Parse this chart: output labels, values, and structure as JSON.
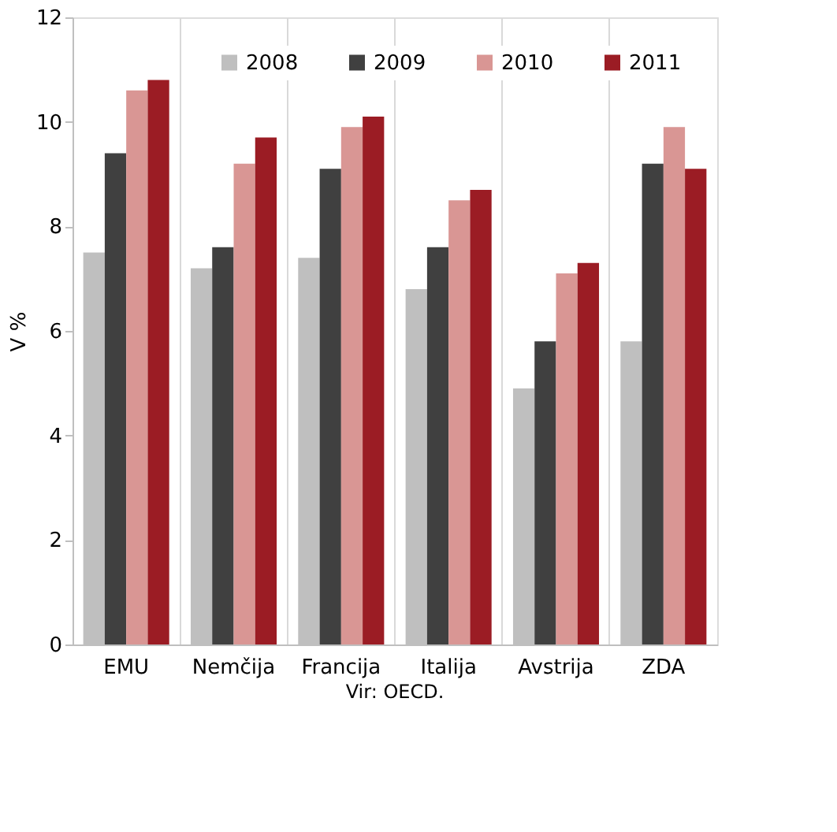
{
  "chart_data": {
    "type": "bar",
    "ylabel": "V %",
    "categories": [
      "EMU",
      "Nemčija",
      "Francija",
      "Italija",
      "Avstrija",
      "ZDA"
    ],
    "series": [
      {
        "name": "2008",
        "color": "#bfbfbf",
        "values": [
          7.5,
          7.2,
          7.4,
          6.8,
          4.9,
          5.8
        ]
      },
      {
        "name": "2009",
        "color": "#404040",
        "values": [
          9.4,
          7.6,
          9.1,
          7.6,
          5.8,
          9.2
        ]
      },
      {
        "name": "2010",
        "color": "#d99694",
        "values": [
          10.6,
          9.2,
          9.9,
          8.5,
          7.1,
          9.9
        ]
      },
      {
        "name": "2011",
        "color": "#9b1c24",
        "values": [
          10.8,
          9.7,
          10.1,
          8.7,
          7.3,
          9.1
        ]
      }
    ],
    "ylim": [
      0,
      12
    ],
    "yticks": [
      0,
      2,
      4,
      6,
      8,
      10,
      12
    ],
    "grid": "x",
    "legend": "top right",
    "annotations": [
      "Vir: OECD."
    ]
  }
}
